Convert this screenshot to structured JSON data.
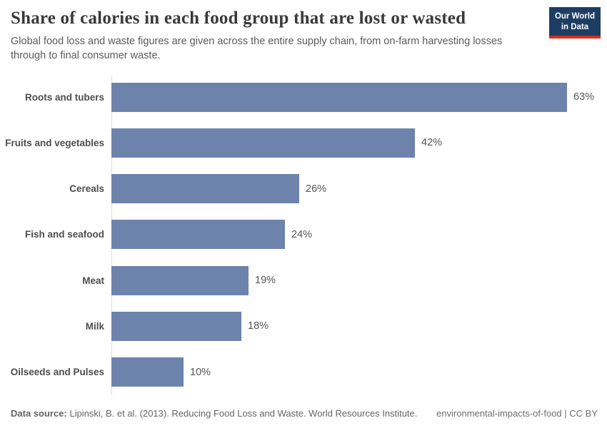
{
  "header": {
    "title": "Share of calories in each food group that are lost or wasted",
    "subtitle": "Global food loss and waste figures are given across the entire supply chain, from on-farm harvesting losses through to final consumer waste.",
    "logo": {
      "line1": "Our World",
      "line2": "in Data"
    }
  },
  "chart_data": {
    "type": "bar",
    "orientation": "horizontal",
    "title": "Share of calories in each food group that are lost or wasted",
    "categories": [
      "Roots and tubers",
      "Fruits and vegetables",
      "Cereals",
      "Fish and seafood",
      "Meat",
      "Milk",
      "Oilseeds and Pulses"
    ],
    "values": [
      63,
      42,
      26,
      24,
      19,
      18,
      10
    ],
    "value_labels": [
      "63%",
      "42%",
      "26%",
      "24%",
      "19%",
      "18%",
      "10%"
    ],
    "xlabel": "",
    "ylabel": "",
    "xlim": [
      0,
      63
    ],
    "grid": false,
    "legend": "none",
    "bar_color": "#6d83ac"
  },
  "footer": {
    "source_label": "Data source:",
    "source_text": " Lipinski, B. et al. (2013). Reducing Food Loss and Waste. World Resources Institute.",
    "note": "environmental-impacts-of-food | CC BY"
  },
  "colors": {
    "bar": "#6d83ac",
    "axis_line": "#dcdcdc",
    "logo_bg": "#1d3d63",
    "logo_red": "#dc2f1f",
    "title_text": "#3a3a3a",
    "body_text": "#5a5a5a"
  }
}
